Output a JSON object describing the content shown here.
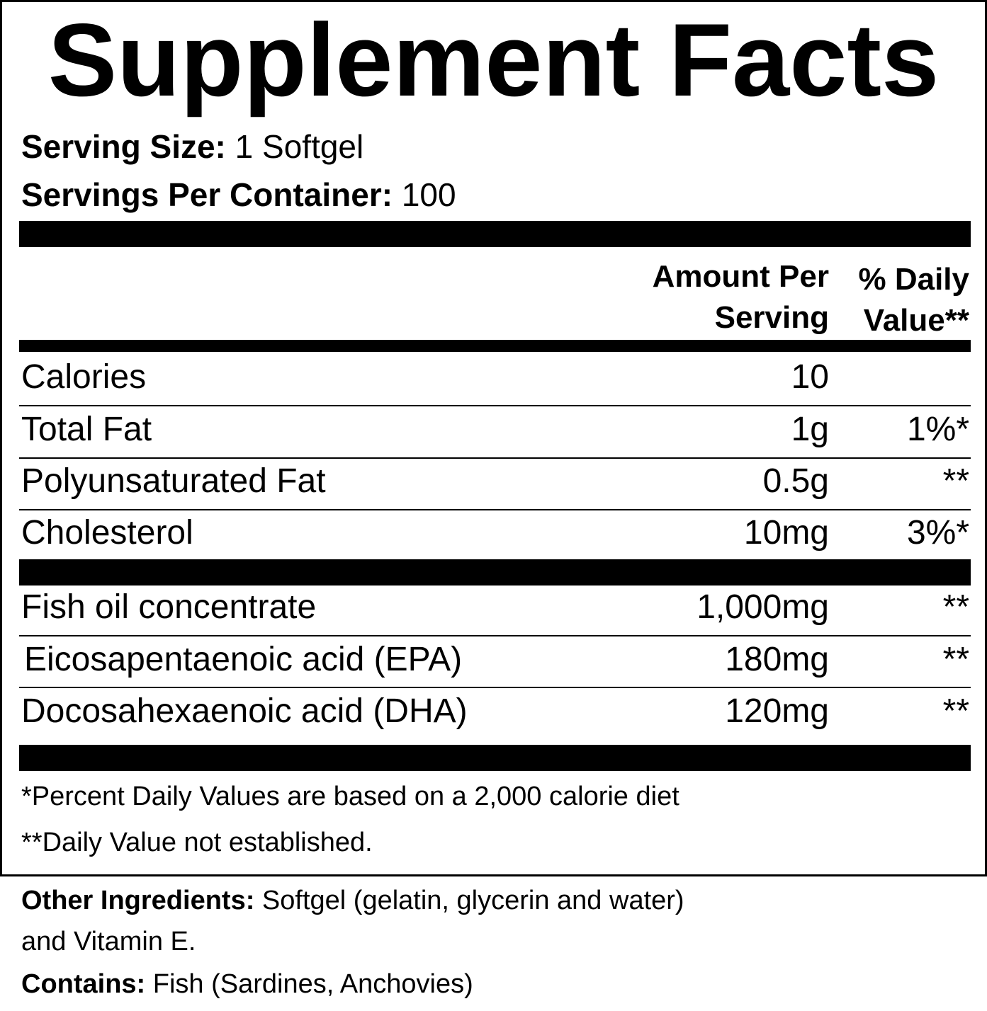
{
  "title": "Supplement Facts",
  "serving": {
    "size_label": "Serving Size:",
    "size_value": " 1 Softgel",
    "per_container_label": "Servings Per Container:",
    "per_container_value": " 100"
  },
  "header": {
    "amount_line1": "Amount Per",
    "amount_line2": "Serving",
    "dv_line1": "% Daily",
    "dv_line2": "Value**"
  },
  "rows_a": [
    {
      "name": "Calories",
      "amount": "10",
      "dv": ""
    },
    {
      "name": "Total Fat",
      "amount": "1g",
      "dv": "1%*"
    },
    {
      "name": "Polyunsaturated Fat",
      "amount": "0.5g",
      "dv": "**"
    },
    {
      "name": "Cholesterol",
      "amount": "10mg",
      "dv": "3%*"
    }
  ],
  "rows_b": [
    {
      "name": "Fish oil concentrate",
      "amount": "1,000mg",
      "dv": "**"
    },
    {
      "name": "Eicosapentaenoic acid (EPA)",
      "amount": "180mg",
      "dv": "**"
    },
    {
      "name": "Docosahexaenoic acid (DHA)",
      "amount": "120mg",
      "dv": "**"
    }
  ],
  "footnotes": [
    "*Percent Daily Values are based on a 2,000 calorie diet",
    "**Daily Value not established."
  ],
  "other": {
    "ingredients_label": "Other Ingredients:",
    "ingredients_value": " Softgel (gelatin, glycerin and water)",
    "ingredients_value2": "and Vitamin E.",
    "contains_label": "Contains:",
    "contains_value": " Fish (Sardines, Anchovies)"
  }
}
